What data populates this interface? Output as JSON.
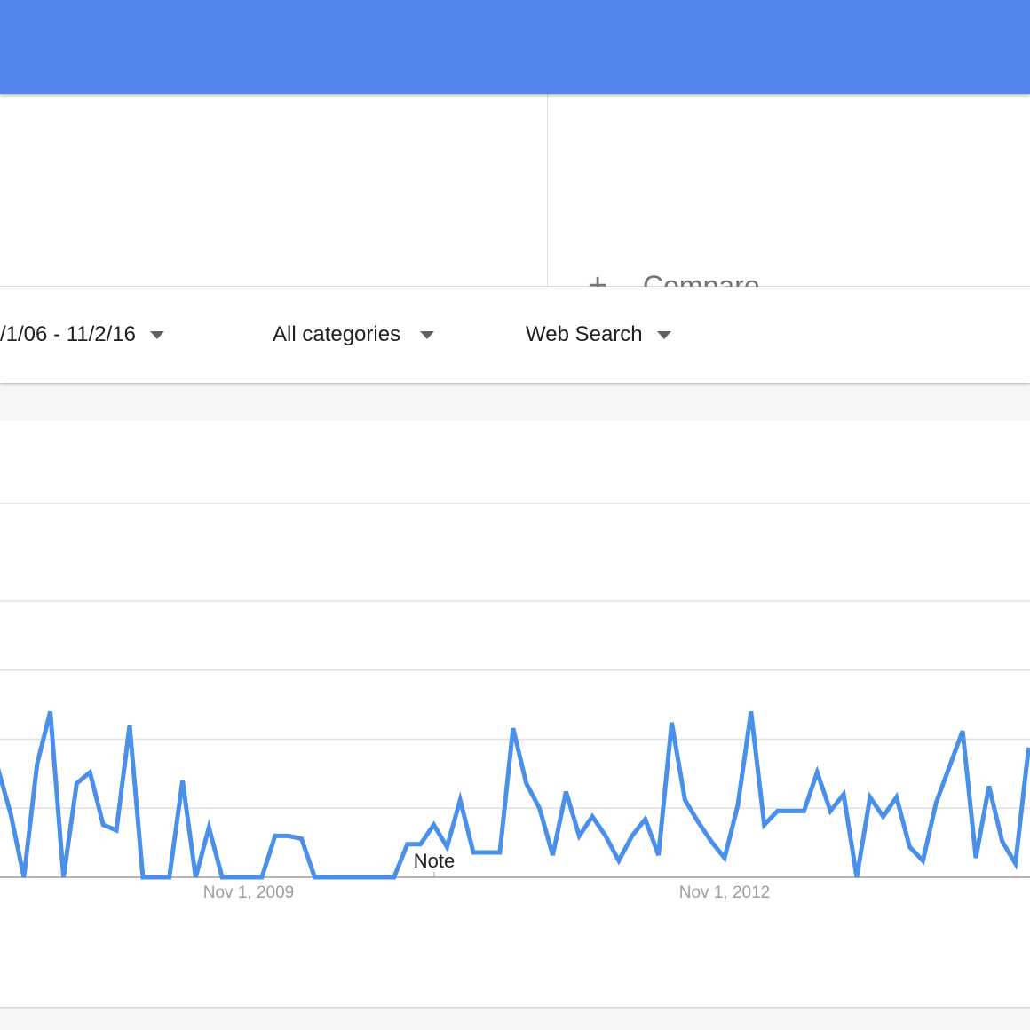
{
  "header": {
    "color": "#5285eb"
  },
  "compare": {
    "icon": "plus-icon",
    "label": "Compare"
  },
  "filters": {
    "date_range": "/1/06 - 11/2/16",
    "category": "All categories",
    "search_type": "Web Search"
  },
  "chart_data": {
    "type": "line",
    "title": "",
    "xlabel": "",
    "ylabel": "",
    "ylim": [
      0,
      100
    ],
    "grid": true,
    "color": "#4a90e8",
    "x_ticks": [
      "Nov 1, 2009",
      "Nov 1, 2012"
    ],
    "annotation": "Note",
    "x": [
      "2008-04",
      "2008-05",
      "2008-06",
      "2008-07",
      "2008-08",
      "2008-09",
      "2008-10",
      "2008-11",
      "2008-12",
      "2009-01",
      "2009-02",
      "2009-03",
      "2009-04",
      "2009-05",
      "2009-06",
      "2009-07",
      "2009-08",
      "2009-09",
      "2009-10",
      "2009-11",
      "2009-12",
      "2010-01",
      "2010-02",
      "2010-03",
      "2010-04",
      "2010-05",
      "2010-06",
      "2010-07",
      "2010-08",
      "2010-09",
      "2010-10",
      "2010-11",
      "2010-12",
      "2011-01",
      "2011-02",
      "2011-03",
      "2011-04",
      "2011-05",
      "2011-06",
      "2011-07",
      "2011-08",
      "2011-09",
      "2011-10",
      "2011-11",
      "2011-12",
      "2012-01",
      "2012-02",
      "2012-03",
      "2012-04",
      "2012-05",
      "2012-06",
      "2012-07",
      "2012-08",
      "2012-09",
      "2012-10",
      "2012-11",
      "2012-12",
      "2013-01",
      "2013-02",
      "2013-03",
      "2013-04",
      "2013-05",
      "2013-06",
      "2013-07",
      "2013-08",
      "2013-09",
      "2013-10",
      "2013-11",
      "2013-12",
      "2014-01",
      "2014-02",
      "2014-03",
      "2014-04",
      "2014-05",
      "2014-06",
      "2014-07",
      "2014-08",
      "2014-09",
      "2014-10"
    ],
    "values": [
      40,
      23,
      0,
      41,
      60,
      0,
      34,
      38,
      19,
      17,
      55,
      0,
      0,
      0,
      35,
      0,
      18,
      0,
      0,
      0,
      0,
      15,
      15,
      14,
      0,
      0,
      0,
      0,
      0,
      0,
      0,
      12,
      12,
      19,
      11,
      28,
      9,
      9,
      9,
      54,
      34,
      25,
      8,
      31,
      15,
      22,
      15,
      6,
      15,
      21,
      8,
      56,
      28,
      20,
      13,
      7,
      26,
      60,
      19,
      24,
      24,
      24,
      38,
      24,
      30,
      0,
      29,
      22,
      29,
      11,
      6,
      27,
      40,
      53,
      7,
      33,
      13,
      5,
      47
    ]
  }
}
